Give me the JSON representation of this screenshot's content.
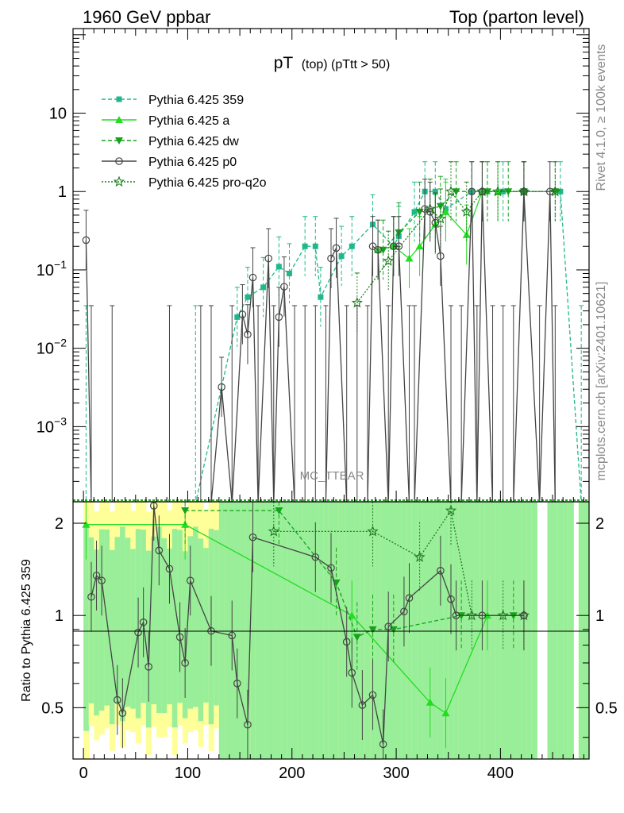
{
  "header": {
    "left": "1960 GeV ppbar",
    "right": "Top (parton level)"
  },
  "side": {
    "rivet": "Rivet 4.1.0, ≥ 100k events",
    "mcplots": "mcplots.cern.ch [arXiv:2401.10621]"
  },
  "watermark": "MC_TTBAR",
  "chart_data": {
    "type": "line",
    "title": "pT (top) (pTtt > 50)",
    "title_main": "pT",
    "title_sub": "(top) (pTtt > 50)",
    "xlabel": "",
    "ylabel": "",
    "ratio_ylabel": "Ratio to Pythia 6.425 359",
    "xlim": [
      -10,
      485
    ],
    "ylim": [
      0.00011,
      120
    ],
    "yscale": "log",
    "ratio_ylim": [
      0.34,
      2.35
    ],
    "ratio_yscale": "log",
    "x_ticks": [
      "0",
      "100",
      "200",
      "300",
      "400"
    ],
    "x_tick_values": [
      0,
      100,
      200,
      300,
      400
    ],
    "y_tick_labels": [
      "10^-3",
      "10^-2",
      "10^-1",
      "1",
      "10"
    ],
    "y_tick_values": [
      0.001,
      0.01,
      0.1,
      1,
      10
    ],
    "ratio_tick_labels": [
      "0.5",
      "1",
      "2"
    ],
    "ratio_tick_values": [
      0.5,
      1,
      2
    ],
    "legend": {
      "position": "top-left",
      "entries": [
        {
          "label": "Pythia 6.425 359",
          "color": "#1fb88c",
          "dash": "dashed",
          "marker": "square"
        },
        {
          "label": "Pythia 6.425 a",
          "color": "#22dd22",
          "dash": "solid",
          "marker": "triangle-up"
        },
        {
          "label": "Pythia 6.425 dw",
          "color": "#17a21c",
          "dash": "dashed",
          "marker": "triangle-down"
        },
        {
          "label": "Pythia 6.425 p0",
          "color": "#444444",
          "dash": "solid",
          "marker": "open-circle"
        },
        {
          "label": "Pythia 6.425 pro-q2o",
          "color": "#1f7d1f",
          "dash": "dotted",
          "marker": "open-star"
        }
      ]
    },
    "series": [
      {
        "name": "Pythia 6.425 p0",
        "points": [
          [
            2.5,
            0.24
          ],
          [
            7.5,
            0
          ],
          [
            27.5,
            0
          ],
          [
            82.5,
            0
          ],
          [
            112.5,
            0
          ],
          [
            122.5,
            0
          ],
          [
            132.5,
            0.0032
          ],
          [
            142.5,
            0
          ],
          [
            152.5,
            0.027
          ],
          [
            157.5,
            0.015
          ],
          [
            162.5,
            0.08
          ],
          [
            167.5,
            0
          ],
          [
            177.5,
            0.14
          ],
          [
            182.5,
            0
          ],
          [
            187.5,
            0.025
          ],
          [
            192.5,
            0.061
          ],
          [
            202.5,
            0
          ],
          [
            212.5,
            0
          ],
          [
            222.5,
            0
          ],
          [
            232.5,
            0
          ],
          [
            237.5,
            0.14
          ],
          [
            242.5,
            0.19
          ],
          [
            252.5,
            0
          ],
          [
            262.5,
            0
          ],
          [
            272.5,
            0
          ],
          [
            277.5,
            0.2
          ],
          [
            282.5,
            0.18
          ],
          [
            292.5,
            0
          ],
          [
            297.5,
            0.2
          ],
          [
            302.5,
            0.2
          ],
          [
            312.5,
            0
          ],
          [
            317.5,
            0
          ],
          [
            327.5,
            0.6
          ],
          [
            332.5,
            0.55
          ],
          [
            337.5,
            0.4
          ],
          [
            342.5,
            0.15
          ],
          [
            352.5,
            0
          ],
          [
            362.5,
            0
          ],
          [
            372.5,
            1.0
          ],
          [
            377.5,
            0
          ],
          [
            382.5,
            1.0
          ],
          [
            392.5,
            0
          ],
          [
            402.5,
            0
          ],
          [
            412.5,
            0
          ],
          [
            422.5,
            1.0
          ],
          [
            437.5,
            0
          ],
          [
            447.5,
            1.0
          ],
          [
            452.5,
            0
          ]
        ]
      },
      {
        "name": "Pythia 6.425 359",
        "points": [
          [
            2.5,
            0
          ],
          [
            107.5,
            0
          ],
          [
            147.5,
            0.025
          ],
          [
            157.5,
            0.045
          ],
          [
            172.5,
            0.06
          ],
          [
            187.5,
            0.11
          ],
          [
            197.5,
            0.09
          ],
          [
            212.5,
            0.2
          ],
          [
            222.5,
            0.2
          ],
          [
            227.5,
            0.045
          ],
          [
            247.5,
            0.15
          ],
          [
            257.5,
            0.2
          ],
          [
            277.5,
            0.38
          ],
          [
            297.5,
            0.2
          ],
          [
            302.5,
            0.27
          ],
          [
            317.5,
            0.55
          ],
          [
            327.5,
            1.0
          ],
          [
            337.5,
            1.0
          ],
          [
            347.5,
            0.6
          ],
          [
            372.5,
            1.0
          ],
          [
            387.5,
            1.0
          ],
          [
            402.5,
            1.0
          ],
          [
            422.5,
            1.0
          ],
          [
            457.5,
            1.0
          ],
          [
            477.5,
            0
          ]
        ]
      },
      {
        "name": "Pythia 6.425 a",
        "points": [
          [
            282.5,
            0.18
          ],
          [
            297.5,
            0.2
          ],
          [
            312.5,
            0.14
          ],
          [
            322.5,
            0.2
          ],
          [
            337.5,
            0.38
          ],
          [
            347.5,
            0.55
          ],
          [
            367.5,
            0.28
          ],
          [
            382.5,
            1.0
          ],
          [
            397.5,
            1.0
          ],
          [
            422.5,
            1.0
          ]
        ]
      },
      {
        "name": "Pythia 6.425 dw",
        "points": [
          [
            287.5,
            0.18
          ],
          [
            302.5,
            0.3
          ],
          [
            322.5,
            0.55
          ],
          [
            342.5,
            0.65
          ],
          [
            357.5,
            1.0
          ],
          [
            387.5,
            1.0
          ],
          [
            407.5,
            1.0
          ],
          [
            422.5,
            1.0
          ],
          [
            452.5,
            1.0
          ]
        ]
      },
      {
        "name": "Pythia 6.425 pro-q2o",
        "points": [
          [
            262.5,
            0.038
          ],
          [
            292.5,
            0.13
          ],
          [
            332.5,
            0.6
          ],
          [
            342.5,
            0.45
          ],
          [
            352.5,
            1.0
          ],
          [
            367.5,
            0.55
          ],
          [
            382.5,
            1.0
          ],
          [
            397.5,
            1.0
          ],
          [
            422.5,
            1.0
          ],
          [
            452.5,
            1.0
          ]
        ]
      }
    ],
    "ratio_series": [
      {
        "name": "Pythia 6.425 p0",
        "points": [
          [
            7.5,
            1.15
          ],
          [
            12.5,
            1.35
          ],
          [
            17.5,
            1.3
          ],
          [
            32.5,
            0.53
          ],
          [
            37.5,
            0.48
          ],
          [
            52.5,
            0.88
          ],
          [
            57.5,
            0.95
          ],
          [
            62.5,
            0.68
          ],
          [
            67.5,
            2.28
          ],
          [
            72.5,
            1.63
          ],
          [
            82.5,
            1.42
          ],
          [
            92.5,
            0.85
          ],
          [
            97.5,
            0.7
          ],
          [
            102.5,
            1.3
          ],
          [
            122.5,
            0.89
          ],
          [
            142.5,
            0.86
          ],
          [
            147.5,
            0.6
          ],
          [
            157.5,
            0.44
          ],
          [
            162.5,
            1.8
          ],
          [
            222.5,
            1.55
          ],
          [
            237.5,
            1.43
          ],
          [
            252.5,
            0.82
          ],
          [
            257.5,
            0.65
          ],
          [
            267.5,
            0.51
          ],
          [
            277.5,
            0.55
          ],
          [
            287.5,
            0.38
          ],
          [
            292.5,
            0.92
          ],
          [
            307.5,
            1.03
          ],
          [
            312.5,
            1.14
          ],
          [
            342.5,
            1.4
          ],
          [
            352.5,
            1.13
          ],
          [
            357.5,
            1.0
          ],
          [
            382.5,
            1.0
          ],
          [
            422.5,
            1.0
          ]
        ]
      },
      {
        "name": "Pythia 6.425 pro-q2o",
        "points": [
          [
            182.5,
            1.88
          ],
          [
            277.5,
            1.88
          ],
          [
            322.5,
            1.55
          ],
          [
            352.5,
            2.2
          ],
          [
            372.5,
            1.0
          ],
          [
            402.5,
            1.0
          ],
          [
            422.5,
            1.0
          ]
        ]
      },
      {
        "name": "Pythia 6.425 a",
        "points": [
          [
            2.5,
            1.98
          ],
          [
            97.5,
            1.98
          ],
          [
            257.5,
            1.0
          ],
          [
            332.5,
            0.52
          ],
          [
            347.5,
            0.48
          ],
          [
            387.5,
            1.0
          ]
        ]
      },
      {
        "name": "Pythia 6.425 dw",
        "points": [
          [
            97.5,
            2.2
          ],
          [
            187.5,
            2.2
          ],
          [
            242.5,
            1.28
          ],
          [
            262.5,
            0.85
          ],
          [
            277.5,
            0.9
          ],
          [
            297.5,
            0.9
          ],
          [
            362.5,
            1.0
          ],
          [
            412.5,
            1.0
          ]
        ]
      }
    ]
  }
}
